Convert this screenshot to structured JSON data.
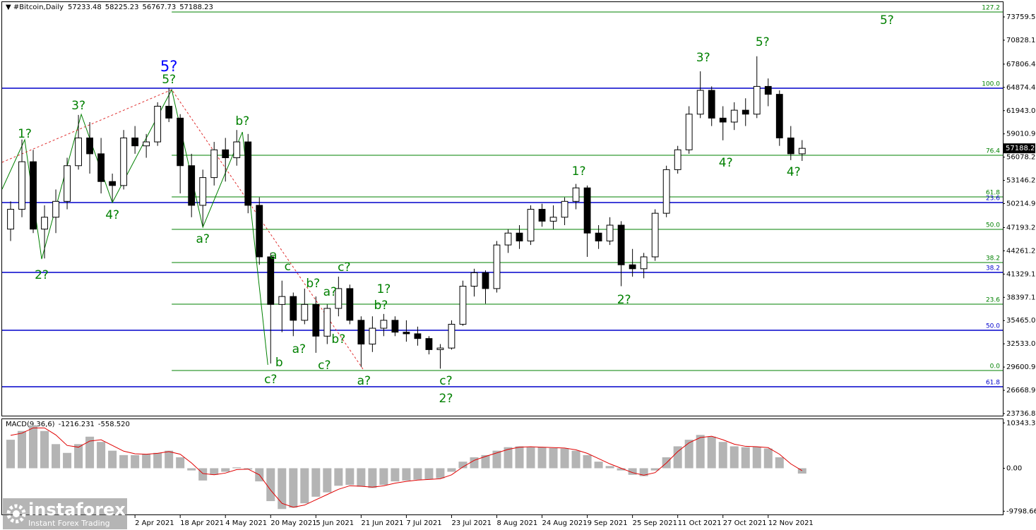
{
  "chart_data": {
    "type": "candlestick",
    "header": {
      "symbol": "#Bitcoin,Daily",
      "ohlc": [
        57233.48,
        58225.23,
        56767.73,
        57188.23
      ]
    },
    "x": [
      "17 Feb 2021",
      "21 Feb 2021",
      "25 Feb 2021",
      "1 Mar 2021",
      "5 Mar 2021",
      "9 Mar 2021",
      "13 Mar 2021",
      "17 Mar 2021",
      "21 Mar 2021",
      "25 Mar 2021",
      "29 Mar 2021",
      "2 Apr 2021",
      "6 Apr 2021",
      "10 Apr 2021",
      "14 Apr 2021",
      "18 Apr 2021",
      "22 Apr 2021",
      "26 Apr 2021",
      "30 Apr 2021",
      "4 May 2021",
      "8 May 2021",
      "12 May 2021",
      "16 May 2021",
      "20 May 2021",
      "24 May 2021",
      "28 May 2021",
      "1 Jun 2021",
      "5 Jun 2021",
      "9 Jun 2021",
      "13 Jun 2021",
      "17 Jun 2021",
      "21 Jun 2021",
      "25 Jun 2021",
      "29 Jun 2021",
      "3 Jul 2021",
      "7 Jul 2021",
      "11 Jul 2021",
      "15 Jul 2021",
      "19 Jul 2021",
      "23 Jul 2021",
      "27 Jul 2021",
      "31 Jul 2021",
      "4 Aug 2021",
      "8 Aug 2021",
      "12 Aug 2021",
      "16 Aug 2021",
      "20 Aug 2021",
      "24 Aug 2021",
      "28 Aug 2021",
      "1 Sep 2021",
      "5 Sep 2021",
      "9 Sep 2021",
      "13 Sep 2021",
      "17 Sep 2021",
      "21 Sep 2021",
      "25 Sep 2021",
      "29 Sep 2021",
      "3 Oct 2021",
      "7 Oct 2021",
      "11 Oct 2021",
      "15 Oct 2021",
      "19 Oct 2021",
      "23 Oct 2021",
      "27 Oct 2021",
      "31 Oct 2021",
      "4 Nov 2021",
      "8 Nov 2021",
      "12 Nov 2021",
      "16 Nov 2021",
      "20 Nov 2021",
      "24 Nov 2021"
    ],
    "ohlc": [
      [
        47000,
        50500,
        45500,
        49500
      ],
      [
        49500,
        58300,
        48500,
        55500
      ],
      [
        55500,
        57000,
        46500,
        47000
      ],
      [
        47000,
        50000,
        43300,
        48500
      ],
      [
        48500,
        52000,
        46500,
        50500
      ],
      [
        50500,
        56000,
        49500,
        55000
      ],
      [
        55000,
        61400,
        54500,
        58500
      ],
      [
        58500,
        60500,
        54000,
        56500
      ],
      [
        56500,
        58500,
        51500,
        53000
      ],
      [
        53000,
        54000,
        50500,
        52500
      ],
      [
        52500,
        59500,
        52000,
        58500
      ],
      [
        58500,
        60000,
        56500,
        57500
      ],
      [
        57500,
        59000,
        56000,
        58000
      ],
      [
        58000,
        63000,
        57500,
        62500
      ],
      [
        62500,
        64800,
        60500,
        61000
      ],
      [
        61000,
        61500,
        51500,
        55000
      ],
      [
        55000,
        56500,
        48500,
        50000
      ],
      [
        50000,
        54500,
        47400,
        53500
      ],
      [
        53500,
        58000,
        52500,
        57000
      ],
      [
        57000,
        58500,
        53000,
        56000
      ],
      [
        56000,
        59500,
        55000,
        58000
      ],
      [
        58000,
        59000,
        49000,
        50000
      ],
      [
        50000,
        51000,
        42500,
        43500
      ],
      [
        43500,
        44000,
        30050,
        37500
      ],
      [
        37500,
        40500,
        34000,
        38500
      ],
      [
        38500,
        39000,
        33500,
        35500
      ],
      [
        35500,
        39500,
        35000,
        37500
      ],
      [
        37500,
        38500,
        31400,
        33500
      ],
      [
        33500,
        37500,
        32500,
        37000
      ],
      [
        37000,
        41000,
        36000,
        39500
      ],
      [
        39500,
        40000,
        35000,
        35500
      ],
      [
        35500,
        36000,
        29600,
        32500
      ],
      [
        32500,
        36000,
        31500,
        34500
      ],
      [
        34500,
        36300,
        33500,
        35500
      ],
      [
        35500,
        36000,
        33500,
        34000
      ],
      [
        34000,
        35500,
        32800,
        33800
      ],
      [
        33800,
        34700,
        32300,
        33200
      ],
      [
        33200,
        33500,
        31200,
        31800
      ],
      [
        31800,
        32500,
        29400,
        32000
      ],
      [
        32000,
        35500,
        31800,
        35000
      ],
      [
        35000,
        40500,
        34800,
        39800
      ],
      [
        39800,
        42000,
        38500,
        41500
      ],
      [
        41500,
        41800,
        37600,
        39500
      ],
      [
        39500,
        45500,
        39000,
        45000
      ],
      [
        45000,
        47000,
        44000,
        46500
      ],
      [
        46500,
        47500,
        44500,
        45500
      ],
      [
        45500,
        50000,
        45000,
        49500
      ],
      [
        49500,
        50200,
        47300,
        48000
      ],
      [
        48000,
        50000,
        47000,
        48500
      ],
      [
        48500,
        51000,
        47500,
        50500
      ],
      [
        50500,
        52700,
        49500,
        52200
      ],
      [
        52200,
        52500,
        43500,
        46500
      ],
      [
        46500,
        47500,
        44500,
        45500
      ],
      [
        45500,
        48500,
        45000,
        47500
      ],
      [
        47500,
        48000,
        39800,
        42500
      ],
      [
        42500,
        44500,
        41000,
        42000
      ],
      [
        42000,
        44000,
        40800,
        43500
      ],
      [
        43500,
        49500,
        43000,
        49000
      ],
      [
        49000,
        55000,
        48500,
        54500
      ],
      [
        54500,
        57500,
        54000,
        57000
      ],
      [
        57000,
        62500,
        56500,
        61500
      ],
      [
        61500,
        66900,
        61000,
        64500
      ],
      [
        64500,
        65000,
        60000,
        61000
      ],
      [
        61000,
        62500,
        58200,
        60500
      ],
      [
        60500,
        63000,
        59500,
        62000
      ],
      [
        62000,
        63500,
        60000,
        61500
      ],
      [
        61500,
        68800,
        61000,
        65000
      ],
      [
        65000,
        66000,
        62500,
        64000
      ],
      [
        64000,
        64500,
        57500,
        58500
      ],
      [
        58500,
        60000,
        55700,
        56500
      ],
      [
        56500,
        58225.23,
        55600,
        57188.23
      ]
    ],
    "xlim": [
      "14 Feb 2021",
      "3 Feb 2022"
    ],
    "xticks": [
      "2 Apr 2021",
      "18 Apr 2021",
      "4 May 2021",
      "20 May 2021",
      "5 Jun 2021",
      "21 Jun 2021",
      "7 Jul 2021",
      "23 Jul 2021",
      "8 Aug 2021",
      "24 Aug 2021",
      "9 Sep 2021",
      "25 Sep 2021",
      "11 Oct 2021",
      "27 Oct 2021",
      "12 Nov 2021"
    ],
    "ylim": [
      23381,
      75629
    ],
    "yticks": [
      {
        "value": 73759.56,
        "label": "73759.56"
      },
      {
        "value": 70828.16,
        "label": "70828.16"
      },
      {
        "value": 67806.44,
        "label": "67806.44"
      },
      {
        "value": 64874.4,
        "label": "64874.40"
      },
      {
        "value": 61943.05,
        "label": "61943.05"
      },
      {
        "value": 59010.96,
        "label": "59010.96"
      },
      {
        "value": 56078.25,
        "label": "56078.25"
      },
      {
        "value": 53146.2,
        "label": "53146.20"
      },
      {
        "value": 50214.96,
        "label": "50214.96"
      },
      {
        "value": 47193.25,
        "label": "47193.25"
      },
      {
        "value": 44261.2,
        "label": "44261.20"
      },
      {
        "value": 41329.15,
        "label": "41329.15"
      },
      {
        "value": 38397.1,
        "label": "38397.10"
      },
      {
        "value": 35465.05,
        "label": "35465.05"
      },
      {
        "value": 32533,
        "label": "32533.00"
      },
      {
        "value": 29600.95,
        "label": "29600.95"
      },
      {
        "value": 26668.9,
        "label": "26668.90"
      },
      {
        "value": 23736.86,
        "label": "23736.86"
      }
    ],
    "levels": [
      {
        "label": "127.2",
        "value": 74383,
        "color": "#008000",
        "start": "15 Apr 2021"
      },
      {
        "label": "100.0",
        "value": 64770,
        "color": "#008000",
        "start": "15 Apr 2021"
      },
      {
        "label": "76.4",
        "value": 56315,
        "color": "#008000",
        "start": "15 Apr 2021"
      },
      {
        "label": "61.8",
        "value": 51063,
        "color": "#008000",
        "start": "15 Apr 2021"
      },
      {
        "label": "50.0",
        "value": 46968,
        "color": "#008000",
        "start": "15 Apr 2021"
      },
      {
        "label": "38.2",
        "value": 42785,
        "color": "#008000",
        "start": "15 Apr 2021"
      },
      {
        "label": "23.6",
        "value": 37534,
        "color": "#008000",
        "start": "15 Apr 2021"
      },
      {
        "label": "0.0",
        "value": 29167,
        "color": "#008000",
        "start": "15 Apr 2021"
      },
      {
        "label": null,
        "value": 64770,
        "color": "#0000cc",
        "start": "14 Feb 2021"
      },
      {
        "label": "23.6",
        "value": 50351,
        "color": "#0000cc",
        "start": "14 Feb 2021"
      },
      {
        "label": "38.2",
        "value": 41539,
        "color": "#0000cc",
        "start": "14 Feb 2021"
      },
      {
        "label": "50.0",
        "value": 34241,
        "color": "#0000cc",
        "start": "14 Feb 2021"
      },
      {
        "label": "61.8",
        "value": 27120,
        "color": "#0000cc",
        "start": "14 Feb 2021"
      }
    ],
    "lines": [
      {
        "color": "#008000",
        "dash": false,
        "points": [
          [
            "14 Feb 2021",
            52042
          ],
          [
            "22 Feb 2021",
            58272
          ],
          [
            "28 Feb 2021",
            43230
          ],
          [
            "14 Mar 2021",
            61477
          ],
          [
            "25 Mar 2021",
            50351
          ],
          [
            "15 Apr 2021",
            64592
          ],
          [
            "26 Apr 2021",
            47235
          ],
          [
            "10 May 2021",
            59251
          ],
          [
            "19 May 2021",
            29879
          ]
        ]
      },
      {
        "color": "#e03030",
        "dash": true,
        "points": [
          [
            "14 Feb 2021",
            55424
          ],
          [
            "15 Apr 2021",
            64592
          ],
          [
            "22 Jun 2021",
            29167
          ]
        ]
      }
    ],
    "annotations": [
      {
        "text": "1?",
        "x": "22 Feb 2021",
        "y": 58984,
        "color": "#008000"
      },
      {
        "text": "2?",
        "x": "28 Feb 2021",
        "y": 41183,
        "color": "#008000"
      },
      {
        "text": "3?",
        "x": "13 Mar 2021",
        "y": 62545,
        "color": "#008000"
      },
      {
        "text": "4?",
        "x": "25 Mar 2021",
        "y": 48749,
        "color": "#008000"
      },
      {
        "text": "5?",
        "x": "14 Apr 2021",
        "y": 67440,
        "color": "#0000ff"
      },
      {
        "text": "5?",
        "x": "14 Apr 2021",
        "y": 65838,
        "color": "#008000"
      },
      {
        "text": "a?",
        "x": "26 Apr 2021",
        "y": 45723,
        "color": "#008000"
      },
      {
        "text": "b?",
        "x": "10 May 2021",
        "y": 60587,
        "color": "#008000"
      },
      {
        "text": "a",
        "x": "21 May 2021",
        "y": 43676,
        "color": "#008000"
      },
      {
        "text": "c",
        "x": "26 May 2021",
        "y": 42252,
        "color": "#008000"
      },
      {
        "text": "b",
        "x": "23 May 2021",
        "y": 30146,
        "color": "#008000"
      },
      {
        "text": "c?",
        "x": "20 May 2021",
        "y": 28010,
        "color": "#008000"
      },
      {
        "text": "a?",
        "x": "30 May 2021",
        "y": 31833,
        "color": "#008000"
      },
      {
        "text": "b?",
        "x": "4 Jun 2021",
        "y": 40115,
        "color": "#008000"
      },
      {
        "text": "c?",
        "x": "8 Jun 2021",
        "y": 29786,
        "color": "#008000"
      },
      {
        "text": "a?",
        "x": "10 Jun 2021",
        "y": 39047,
        "color": "#008000"
      },
      {
        "text": "b?",
        "x": "13 Jun 2021",
        "y": 33079,
        "color": "#008000"
      },
      {
        "text": "c?",
        "x": "15 Jun 2021",
        "y": 42163,
        "color": "#008000"
      },
      {
        "text": "a?",
        "x": "22 Jun 2021",
        "y": 27832,
        "color": "#008000"
      },
      {
        "text": "1?",
        "x": "29 Jun 2021",
        "y": 39403,
        "color": "#008000"
      },
      {
        "text": "b?",
        "x": "28 Jun 2021",
        "y": 37356,
        "color": "#008000"
      },
      {
        "text": "c?",
        "x": "21 Jul 2021",
        "y": 27832,
        "color": "#008000"
      },
      {
        "text": "2?",
        "x": "21 Jul 2021",
        "y": 25607,
        "color": "#008000"
      },
      {
        "text": "1?",
        "x": "6 Sep 2021",
        "y": 54267,
        "color": "#008000"
      },
      {
        "text": "2?",
        "x": "22 Sep 2021",
        "y": 38068,
        "color": "#008000"
      },
      {
        "text": "3?",
        "x": "20 Oct 2021",
        "y": 68597,
        "color": "#008000"
      },
      {
        "text": "4?",
        "x": "28 Oct 2021",
        "y": 55335,
        "color": "#008000"
      },
      {
        "text": "5?",
        "x": "10 Nov 2021",
        "y": 70555,
        "color": "#008000"
      },
      {
        "text": "4?",
        "x": "21 Nov 2021",
        "y": 54178,
        "color": "#008000"
      },
      {
        "text": "5?",
        "x": "24 Dec 2021",
        "y": 73315,
        "color": "#008000"
      }
    ],
    "macd": {
      "title": "MACD(9,36,6)",
      "values": [
        -1216.231,
        {
          "value": -558.52,
          "label": "-558.520"
        }
      ],
      "hist": [
        6500,
        8500,
        9800,
        8500,
        5500,
        3500,
        5500,
        7200,
        6000,
        4000,
        3000,
        3000,
        3200,
        3500,
        4000,
        2500,
        -500,
        -2800,
        -1500,
        -800,
        200,
        -300,
        -3000,
        -7500,
        -9300,
        -9000,
        -8000,
        -6500,
        -5500,
        -4000,
        -3800,
        -4200,
        -4500,
        -3800,
        -3000,
        -2800,
        -2600,
        -2500,
        -2300,
        -800,
        1500,
        2500,
        3000,
        4000,
        4800,
        5000,
        4800,
        4800,
        4600,
        4500,
        4000,
        3000,
        1500,
        500,
        -500,
        -1500,
        -1800,
        -500,
        2500,
        5000,
        6500,
        7600,
        7200,
        6000,
        5000,
        4800,
        4900,
        4500,
        2500,
        0,
        -1216.231
      ],
      "signal": [
        7500,
        8000,
        9200,
        9200,
        7600,
        5200,
        4800,
        6200,
        6500,
        5200,
        3900,
        3300,
        3200,
        3400,
        3800,
        3200,
        1200,
        -1200,
        -1500,
        -1100,
        -300,
        -200,
        -1500,
        -5000,
        -8000,
        -8900,
        -8400,
        -7200,
        -6000,
        -4800,
        -4000,
        -4100,
        -4300,
        -4000,
        -3400,
        -3000,
        -2700,
        -2550,
        -2400,
        -1500,
        300,
        1800,
        2700,
        3500,
        4300,
        4800,
        4900,
        4800,
        4700,
        4600,
        4200,
        3400,
        2200,
        1000,
        0,
        -1000,
        -1600,
        -1000,
        1200,
        3800,
        5800,
        7000,
        7300,
        6500,
        5500,
        5000,
        4900,
        4700,
        3200,
        1000,
        -558.52
      ],
      "hist_color": "#b4b4b4",
      "signal_color": "#e00000",
      "ylim": [
        -10710,
        11189
      ],
      "yticks": [
        {
          "value": 10343.31,
          "label": "10343.31"
        },
        {
          "value": 0,
          "label": "0.00"
        },
        {
          "value": -9798.66,
          "label": "-9798.66"
        }
      ]
    },
    "watermark": {
      "brand": "instaforex",
      "tagline": "Instant Forex Trading"
    }
  }
}
